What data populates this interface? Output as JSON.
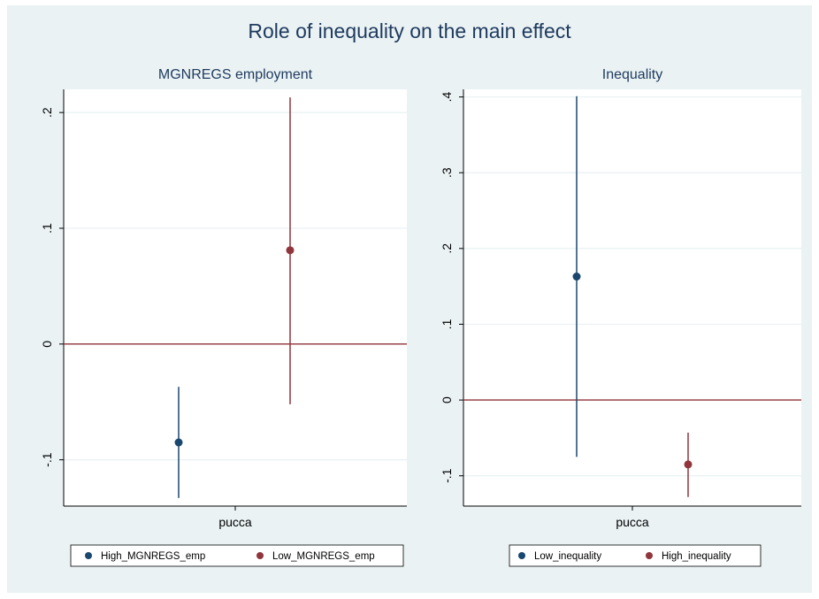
{
  "title": "Role of inequality on the main effect",
  "colors": {
    "navy": "#1a476f",
    "maroon": "#90353b",
    "background": "#eaf2f3",
    "plot_region": "#ffffff",
    "grid": "#eaf2f3",
    "text": "#1e3a5f"
  },
  "chart_data": [
    {
      "type": "scatter",
      "title": "MGNREGS employment",
      "xlabel": "",
      "ylabel": "",
      "categories": [
        "pucca"
      ],
      "ylim": [
        -0.14,
        0.22
      ],
      "yticks": [
        -0.1,
        0,
        0.1,
        0.2
      ],
      "ytick_labels": [
        "-.1",
        "0",
        ".1",
        ".2"
      ],
      "grid": true,
      "reference_line": 0,
      "legend_position": "bottom",
      "series": [
        {
          "name": "High_MGNREGS_emp",
          "color": "#1a476f",
          "estimate": -0.085,
          "ci_low": -0.133,
          "ci_high": -0.037
        },
        {
          "name": "Low_MGNREGS_emp",
          "color": "#90353b",
          "estimate": 0.081,
          "ci_low": -0.052,
          "ci_high": 0.213
        }
      ]
    },
    {
      "type": "scatter",
      "title": "Inequality",
      "xlabel": "",
      "ylabel": "",
      "categories": [
        "pucca"
      ],
      "ylim": [
        -0.14,
        0.41
      ],
      "yticks": [
        -0.1,
        0,
        0.1,
        0.2,
        0.3,
        0.4
      ],
      "ytick_labels": [
        "-.1",
        "0",
        ".1",
        ".2",
        ".3",
        ".4"
      ],
      "grid": true,
      "reference_line": 0,
      "legend_position": "bottom",
      "series": [
        {
          "name": "Low_inequality",
          "color": "#1a476f",
          "estimate": 0.163,
          "ci_low": -0.075,
          "ci_high": 0.401
        },
        {
          "name": "High_inequality",
          "color": "#90353b",
          "estimate": -0.085,
          "ci_low": -0.128,
          "ci_high": -0.043
        }
      ]
    }
  ]
}
